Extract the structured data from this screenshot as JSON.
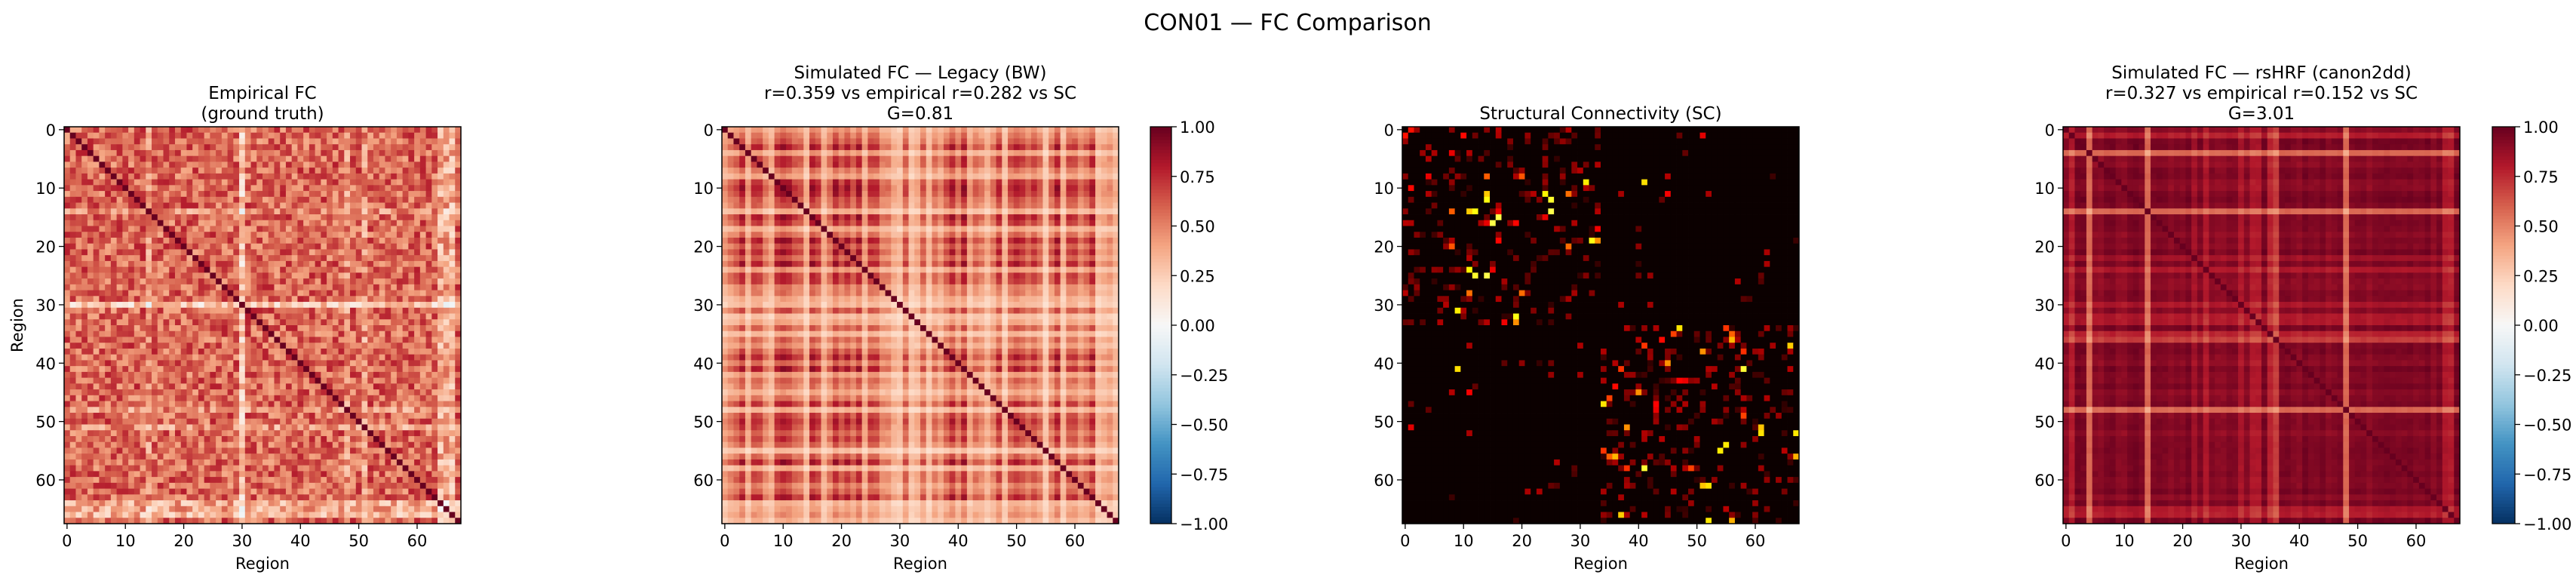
{
  "figure": {
    "suptitle": "CON01 — FC Comparison"
  },
  "chart_data": [
    {
      "type": "heatmap",
      "id": "empirical",
      "title_lines": [
        "Empirical FC",
        "(ground truth)"
      ],
      "xlabel": "Region",
      "ylabel": "Region",
      "n_regions": 68,
      "xticks": [
        0,
        10,
        20,
        30,
        40,
        50,
        60
      ],
      "yticks": [
        0,
        10,
        20,
        30,
        40,
        50,
        60
      ],
      "colormap": "RdBu_r",
      "vlim": [
        -1,
        1
      ],
      "diagonal": 1.0,
      "colorbar": false
    },
    {
      "type": "heatmap",
      "id": "legacy",
      "title_lines": [
        "Simulated FC — Legacy (BW)",
        "r=0.359 vs empirical   r=0.282 vs SC",
        "G=0.81"
      ],
      "r_vs_empirical": 0.359,
      "r_vs_sc": 0.282,
      "G": 0.81,
      "xlabel": "Region",
      "ylabel": "",
      "n_regions": 68,
      "xticks": [
        0,
        10,
        20,
        30,
        40,
        50,
        60
      ],
      "yticks": [
        0,
        10,
        20,
        30,
        40,
        50,
        60
      ],
      "colormap": "RdBu_r",
      "vlim": [
        -1,
        1
      ],
      "diagonal": 1.0,
      "colorbar": true,
      "colorbar_ticks": [
        "1.00",
        "0.75",
        "0.50",
        "0.25",
        "0.00",
        "−0.25",
        "−0.50",
        "−0.75",
        "−1.00"
      ]
    },
    {
      "type": "heatmap",
      "id": "sc",
      "title_lines": [
        "Structural Connectivity (SC)"
      ],
      "xlabel": "Region",
      "ylabel": "",
      "n_regions": 68,
      "xticks": [
        0,
        10,
        20,
        30,
        40,
        50,
        60
      ],
      "yticks": [
        0,
        10,
        20,
        30,
        40,
        50,
        60
      ],
      "colormap": "hot",
      "structure": "two sparse hemispheric blocks (regions 0–33 and 34–67)",
      "colorbar": false
    },
    {
      "type": "heatmap",
      "id": "rshrf",
      "title_lines": [
        "Simulated FC — rsHRF (canon2dd)",
        "r=0.327 vs empirical   r=0.152 vs SC",
        "G=3.01"
      ],
      "r_vs_empirical": 0.327,
      "r_vs_sc": 0.152,
      "G": 3.01,
      "xlabel": "Region",
      "ylabel": "",
      "n_regions": 68,
      "xticks": [
        0,
        10,
        20,
        30,
        40,
        50,
        60
      ],
      "yticks": [
        0,
        10,
        20,
        30,
        40,
        50,
        60
      ],
      "colormap": "RdBu_r",
      "vlim": [
        -1,
        1
      ],
      "diagonal": 1.0,
      "colorbar": true,
      "colorbar_ticks": [
        "1.00",
        "0.75",
        "0.50",
        "0.25",
        "0.00",
        "−0.25",
        "−0.50",
        "−0.75",
        "−1.00"
      ]
    }
  ]
}
